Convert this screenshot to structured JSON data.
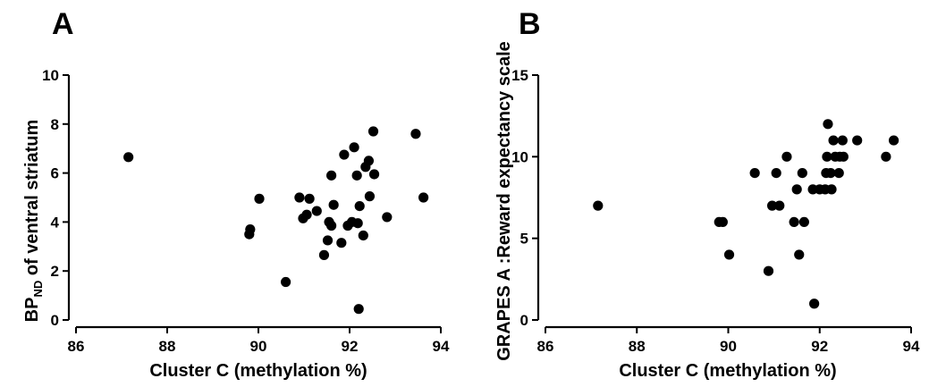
{
  "chart_data": [
    {
      "type": "scatter",
      "panel_label": "A",
      "xlabel": "Cluster C (methylation %)",
      "ylabel_main": "BP",
      "ylabel_sub": "ND",
      "ylabel_rest": " of ventral striatum",
      "xlim": [
        86,
        94
      ],
      "ylim": [
        0,
        10
      ],
      "xticks": [
        "86",
        "88",
        "90",
        "92",
        "94"
      ],
      "yticks": [
        "0",
        "2",
        "4",
        "6",
        "8",
        "10"
      ],
      "xtick_values": [
        86,
        88,
        90,
        92,
        94
      ],
      "ytick_values": [
        0,
        2,
        4,
        6,
        8,
        10
      ],
      "points": [
        [
          87.15,
          6.65
        ],
        [
          89.8,
          3.5
        ],
        [
          89.82,
          3.7
        ],
        [
          90.02,
          4.95
        ],
        [
          90.6,
          1.55
        ],
        [
          90.9,
          5.0
        ],
        [
          90.98,
          4.15
        ],
        [
          91.06,
          4.3
        ],
        [
          91.12,
          4.95
        ],
        [
          91.28,
          4.45
        ],
        [
          91.44,
          2.65
        ],
        [
          91.52,
          3.25
        ],
        [
          91.55,
          4.0
        ],
        [
          91.6,
          3.85
        ],
        [
          91.6,
          5.9
        ],
        [
          91.65,
          4.7
        ],
        [
          91.82,
          3.15
        ],
        [
          91.88,
          6.75
        ],
        [
          91.96,
          3.85
        ],
        [
          92.05,
          4.0
        ],
        [
          92.1,
          7.05
        ],
        [
          92.16,
          5.9
        ],
        [
          92.18,
          3.95
        ],
        [
          92.2,
          0.45
        ],
        [
          92.22,
          4.65
        ],
        [
          92.3,
          3.45
        ],
        [
          92.35,
          6.25
        ],
        [
          92.42,
          6.5
        ],
        [
          92.44,
          5.05
        ],
        [
          92.52,
          7.7
        ],
        [
          92.54,
          5.95
        ],
        [
          92.82,
          4.2
        ],
        [
          93.45,
          7.6
        ],
        [
          93.62,
          5.0
        ]
      ]
    },
    {
      "type": "scatter",
      "panel_label": "B",
      "xlabel": "Cluster C (methylation %)",
      "ylabel": "GRAPES A :Reward expectancy scale",
      "xlim": [
        86,
        94
      ],
      "ylim": [
        0,
        15
      ],
      "xticks": [
        "86",
        "88",
        "90",
        "92",
        "94"
      ],
      "yticks": [
        "0",
        "5",
        "10",
        "15"
      ],
      "xtick_values": [
        86,
        88,
        90,
        92,
        94
      ],
      "ytick_values": [
        0,
        5,
        10,
        15
      ],
      "points": [
        [
          87.15,
          7
        ],
        [
          89.8,
          6
        ],
        [
          89.88,
          6
        ],
        [
          90.02,
          4
        ],
        [
          90.58,
          9
        ],
        [
          90.88,
          3
        ],
        [
          90.96,
          7
        ],
        [
          91.05,
          9
        ],
        [
          91.12,
          7
        ],
        [
          91.28,
          10
        ],
        [
          91.44,
          6
        ],
        [
          91.5,
          8
        ],
        [
          91.55,
          4
        ],
        [
          91.62,
          9
        ],
        [
          91.66,
          6
        ],
        [
          91.85,
          8
        ],
        [
          91.88,
          1
        ],
        [
          92.0,
          8
        ],
        [
          92.12,
          8
        ],
        [
          92.14,
          9
        ],
        [
          92.16,
          10
        ],
        [
          92.18,
          12
        ],
        [
          92.24,
          9
        ],
        [
          92.26,
          8
        ],
        [
          92.3,
          11
        ],
        [
          92.34,
          10
        ],
        [
          92.42,
          9
        ],
        [
          92.44,
          10
        ],
        [
          92.5,
          11
        ],
        [
          92.52,
          10
        ],
        [
          92.82,
          11
        ],
        [
          93.45,
          10
        ],
        [
          93.62,
          11
        ]
      ]
    }
  ]
}
